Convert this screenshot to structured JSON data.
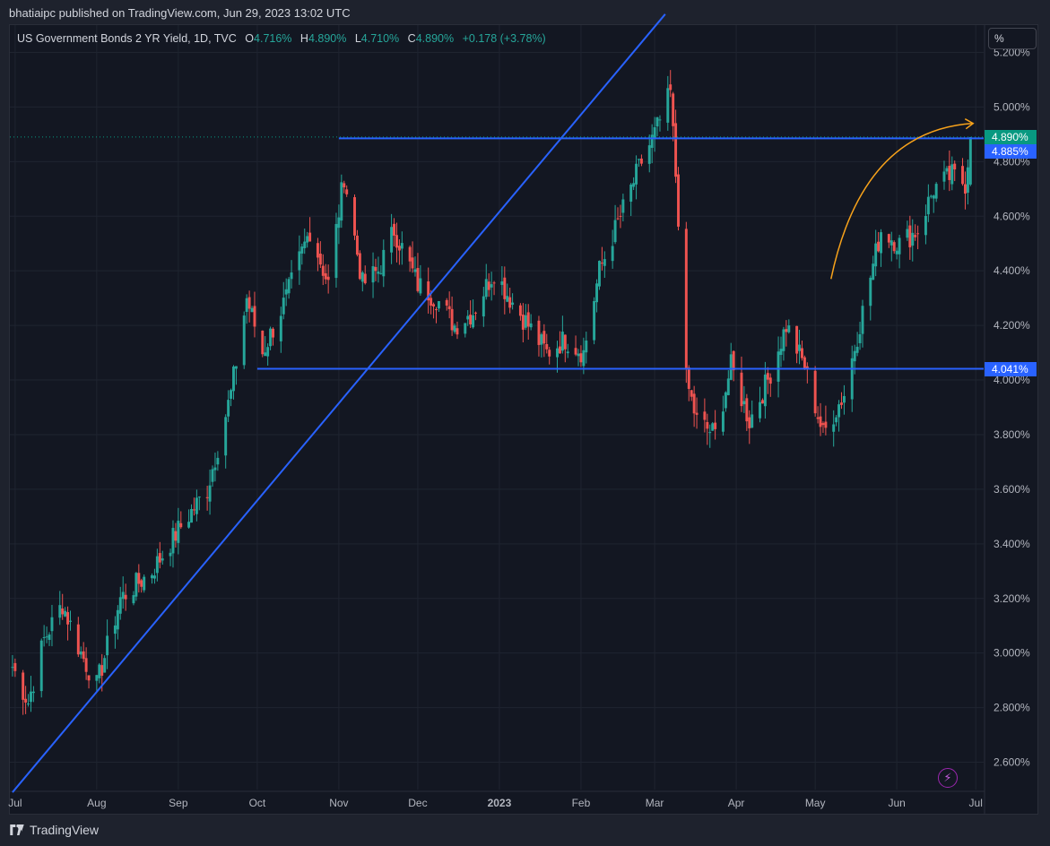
{
  "header": {
    "published_text": "bhatiaipc published on TradingView.com, Jun 29, 2023 13:02 UTC"
  },
  "legend": {
    "title": "US Government Bonds 2 YR Yield, 1D, TVC",
    "o_label": "O",
    "o_value": "4.716%",
    "h_label": "H",
    "h_value": "4.890%",
    "l_label": "L",
    "l_value": "4.710%",
    "c_label": "C",
    "c_value": "4.890%",
    "change": "+0.178 (+3.78%)"
  },
  "unit_selector": {
    "label": "%"
  },
  "footer": {
    "brand": "TradingView"
  },
  "price_tags": {
    "last": "4.890%",
    "hline_top": "4.885%",
    "hline_bottom": "4.041%"
  },
  "colors": {
    "background": "#131722",
    "up": "#26a69a",
    "down": "#ef5350",
    "trendline": "#2962ff",
    "arrow": "#f7a21b",
    "grid": "#1f2430",
    "last_price": "#089981"
  },
  "chart_data": {
    "type": "candlestick",
    "title": "US Government Bonds 2 YR Yield, 1D, TVC",
    "ylim": [
      2.5,
      5.3
    ],
    "y_ticks": [
      "5.200%",
      "5.000%",
      "4.800%",
      "4.600%",
      "4.400%",
      "4.200%",
      "4.000%",
      "3.800%",
      "3.600%",
      "3.400%",
      "3.200%",
      "3.000%",
      "2.800%",
      "2.600%"
    ],
    "y_tick_values": [
      5.2,
      5.0,
      4.8,
      4.6,
      4.4,
      4.2,
      4.0,
      3.8,
      3.6,
      3.4,
      3.2,
      3.0,
      2.8,
      2.6
    ],
    "x_ticks": [
      "Jul",
      "Aug",
      "Sep",
      "Oct",
      "Nov",
      "Dec",
      "2023",
      "Feb",
      "Mar",
      "Apr",
      "May",
      "Jun",
      "Jul"
    ],
    "x_tick_dates": [
      "2022-07-01",
      "2022-08-01",
      "2022-09-01",
      "2022-10-01",
      "2022-11-01",
      "2022-12-01",
      "2023-01-01",
      "2023-02-01",
      "2023-03-01",
      "2023-04-01",
      "2023-05-01",
      "2023-06-01",
      "2023-07-01"
    ],
    "close_path": [
      [
        "2022-06-30",
        2.95
      ],
      [
        "2022-07-06",
        2.82
      ],
      [
        "2022-07-12",
        3.05
      ],
      [
        "2022-07-19",
        3.18
      ],
      [
        "2022-07-26",
        3.0
      ],
      [
        "2022-08-01",
        2.88
      ],
      [
        "2022-08-10",
        3.2
      ],
      [
        "2022-08-22",
        3.3
      ],
      [
        "2022-09-01",
        3.45
      ],
      [
        "2022-09-12",
        3.6
      ],
      [
        "2022-09-21",
        3.95
      ],
      [
        "2022-09-27",
        4.3
      ],
      [
        "2022-10-03",
        4.1
      ],
      [
        "2022-10-12",
        4.3
      ],
      [
        "2022-10-21",
        4.55
      ],
      [
        "2022-10-28",
        4.35
      ],
      [
        "2022-11-03",
        4.75
      ],
      [
        "2022-11-10",
        4.35
      ],
      [
        "2022-11-16",
        4.4
      ],
      [
        "2022-11-22",
        4.55
      ],
      [
        "2022-12-01",
        4.35
      ],
      [
        "2022-12-08",
        4.3
      ],
      [
        "2022-12-15",
        4.2
      ],
      [
        "2022-12-22",
        4.25
      ],
      [
        "2022-12-30",
        4.4
      ],
      [
        "2023-01-05",
        4.3
      ],
      [
        "2023-01-12",
        4.2
      ],
      [
        "2023-01-19",
        4.1
      ],
      [
        "2023-01-26",
        4.15
      ],
      [
        "2023-02-02",
        4.1
      ],
      [
        "2023-02-08",
        4.4
      ],
      [
        "2023-02-16",
        4.6
      ],
      [
        "2023-02-24",
        4.8
      ],
      [
        "2023-03-01",
        4.9
      ],
      [
        "2023-03-07",
        5.05
      ],
      [
        "2023-03-10",
        4.6
      ],
      [
        "2023-03-13",
        4.0
      ],
      [
        "2023-03-17",
        3.85
      ],
      [
        "2023-03-24",
        3.8
      ],
      [
        "2023-03-30",
        4.05
      ],
      [
        "2023-04-06",
        3.85
      ],
      [
        "2023-04-13",
        4.0
      ],
      [
        "2023-04-20",
        4.2
      ],
      [
        "2023-04-27",
        4.05
      ],
      [
        "2023-05-04",
        3.8
      ],
      [
        "2023-05-12",
        3.95
      ],
      [
        "2023-05-19",
        4.25
      ],
      [
        "2023-05-26",
        4.55
      ],
      [
        "2023-06-02",
        4.5
      ],
      [
        "2023-06-09",
        4.55
      ],
      [
        "2023-06-15",
        4.7
      ],
      [
        "2023-06-22",
        4.75
      ],
      [
        "2023-06-27",
        4.72
      ],
      [
        "2023-06-29",
        4.89
      ]
    ],
    "last_candle": {
      "date": "2023-06-29",
      "open": 4.716,
      "high": 4.89,
      "low": 4.71,
      "close": 4.89
    },
    "horizontal_lines": [
      {
        "value": 4.885,
        "from": "2022-11-01",
        "to": "2023-06-29"
      },
      {
        "value": 4.041,
        "from": "2022-10-01",
        "to": "2023-06-29"
      }
    ],
    "trendline": {
      "from": [
        "2022-06-30",
        2.49
      ],
      "to": [
        "2023-03-05",
        5.34
      ]
    },
    "annotation_arrow": {
      "from": [
        "2023-05-07",
        4.37
      ],
      "to": [
        "2023-06-30",
        4.94
      ]
    },
    "grid": true
  }
}
